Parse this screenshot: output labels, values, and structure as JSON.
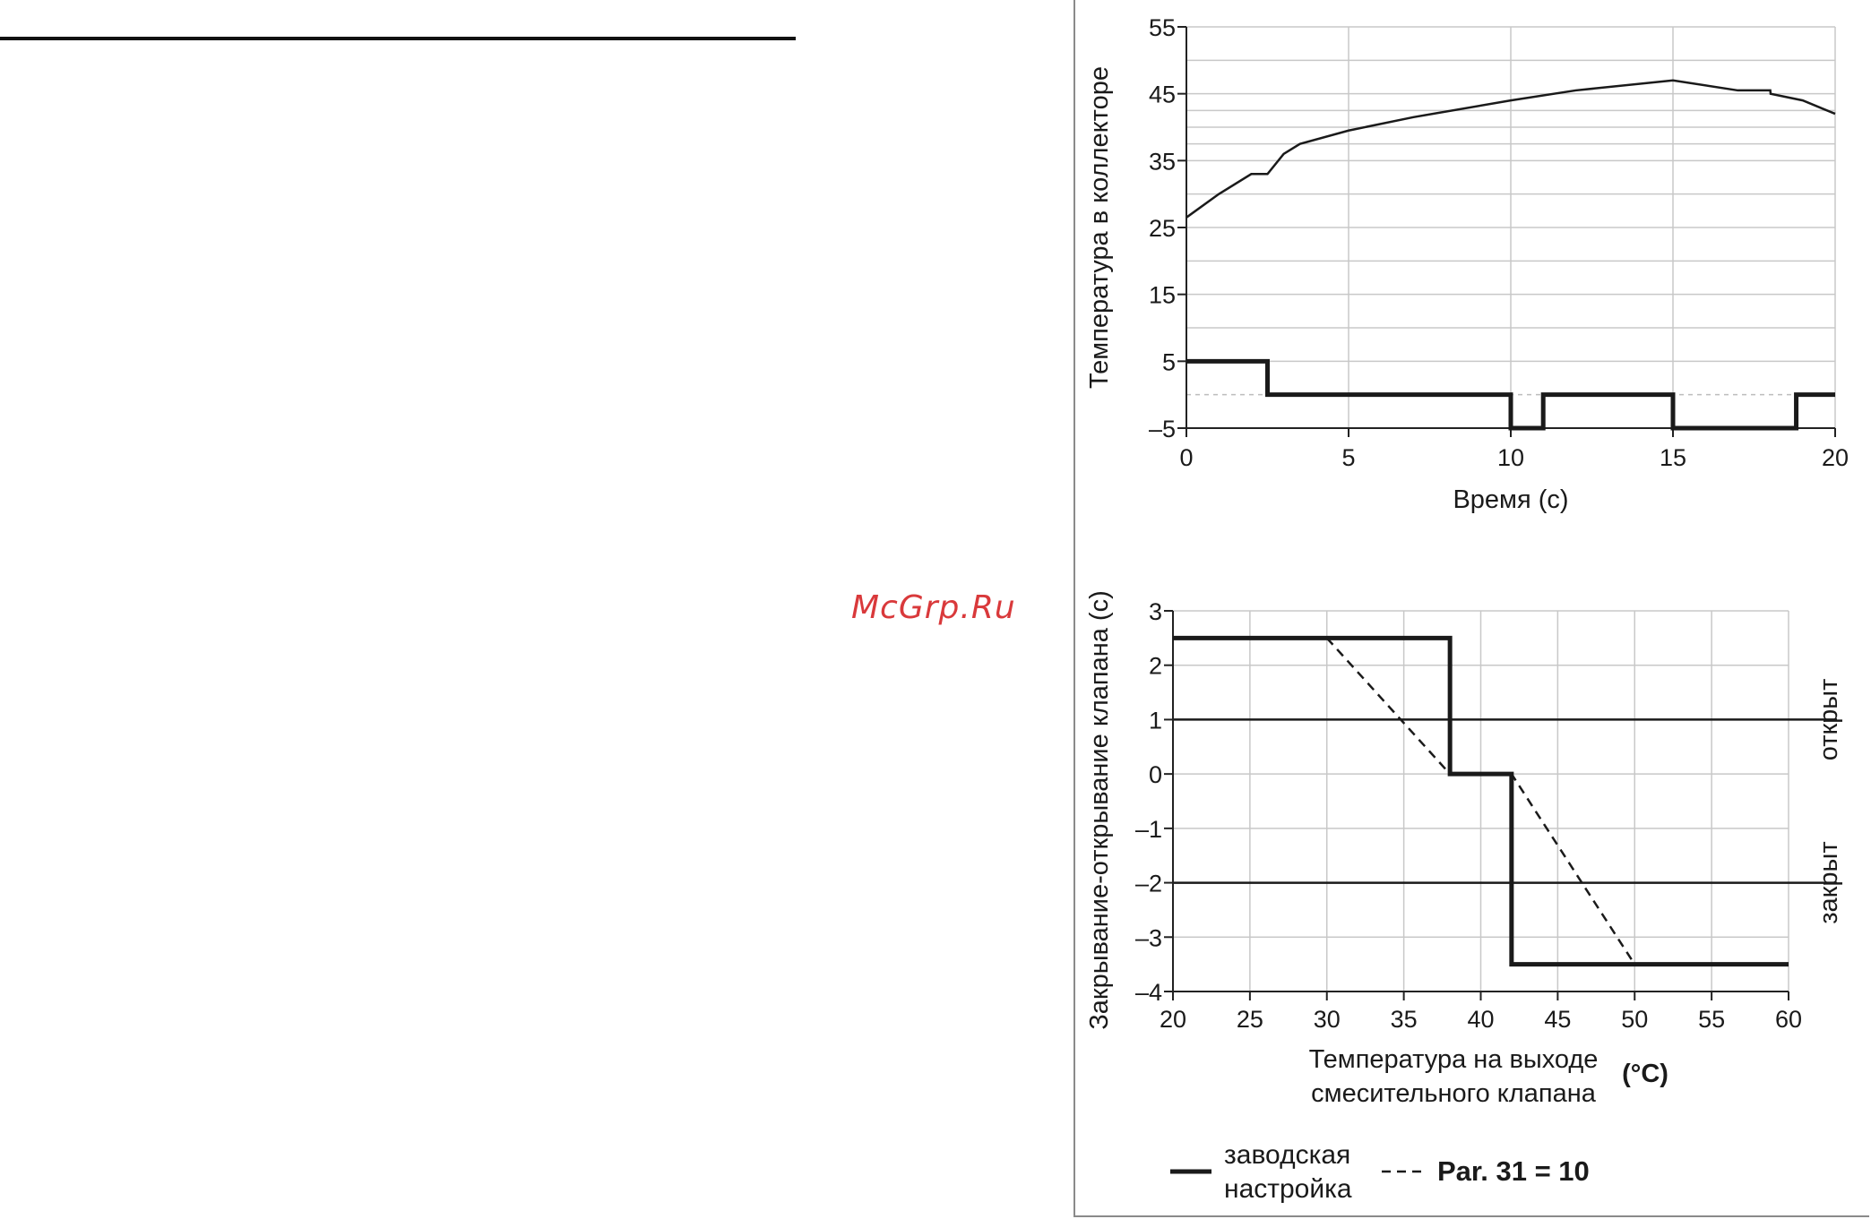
{
  "watermark": "McGrp.Ru",
  "chart_data": [
    {
      "type": "line",
      "title": "",
      "xlabel": "Время (с)",
      "ylabel": "Температура в коллекторе",
      "xlim": [
        0,
        20
      ],
      "ylim": [
        -5,
        55
      ],
      "xticks": [
        0,
        5,
        10,
        15,
        20
      ],
      "yticks": [
        -5,
        5,
        15,
        25,
        35,
        45,
        55
      ],
      "grid": true,
      "series": [
        {
          "style": "thin",
          "x": [
            0,
            1,
            2,
            2.5,
            3,
            3.5,
            5,
            7,
            10,
            12,
            15,
            17,
            18,
            18.01,
            19,
            20
          ],
          "y": [
            26.5,
            30,
            33,
            33,
            36,
            37.5,
            39.5,
            41.5,
            44,
            45.5,
            47,
            45.5,
            45.5,
            45,
            44,
            42
          ]
        },
        {
          "style": "thick-step",
          "x": [
            0,
            2.5,
            2.5,
            10,
            10,
            11,
            11,
            15,
            15,
            18.8,
            18.8,
            20
          ],
          "y": [
            5,
            5,
            0,
            0,
            -5,
            -5,
            0,
            0,
            -5,
            -5,
            0,
            0
          ]
        }
      ]
    },
    {
      "type": "line",
      "title": "",
      "xlabel_lines": [
        "Температура на выходе",
        "смесительного клапана"
      ],
      "x_unit": "(°C)",
      "ylabel": "Закрывание-открывание клапана (с)",
      "xlim": [
        20,
        60
      ],
      "ylim": [
        -4,
        3
      ],
      "xticks": [
        20,
        25,
        30,
        35,
        40,
        45,
        50,
        55,
        60
      ],
      "yticks": [
        -4,
        -3,
        -2,
        -1,
        0,
        1,
        2,
        3
      ],
      "grid": true,
      "reference_lines": [
        {
          "y": 1,
          "label": "открыт"
        },
        {
          "y": -2,
          "label": "закрыт"
        }
      ],
      "series": [
        {
          "name": "заводская настройка",
          "style": "solid",
          "x": [
            20,
            38,
            38,
            42,
            42,
            60
          ],
          "y": [
            2.5,
            2.5,
            0,
            0,
            -3.5,
            -3.5
          ]
        },
        {
          "name": "Par. 31 = 10",
          "style": "dashed",
          "x": [
            30,
            38,
            42,
            50
          ],
          "y": [
            2.5,
            0,
            0,
            -3.5
          ]
        }
      ],
      "legend_lines": [
        "заводская",
        "настройка"
      ],
      "legend_placement": "bottom"
    }
  ]
}
